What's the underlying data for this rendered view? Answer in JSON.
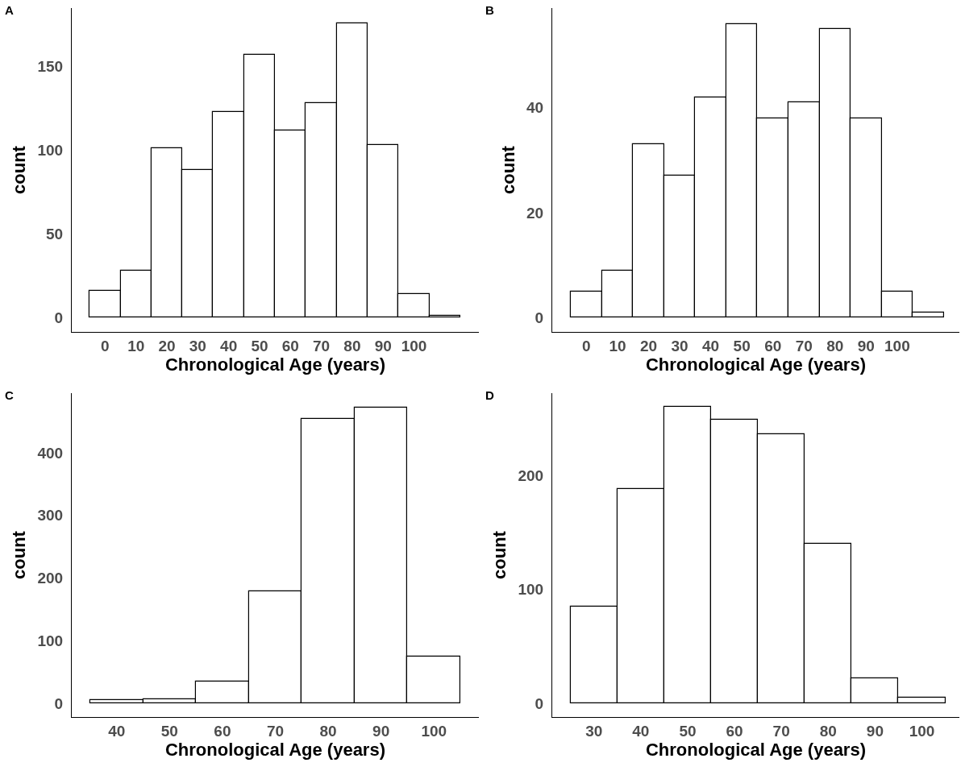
{
  "chart_data": [
    {
      "type": "histogram",
      "title": "A",
      "xlabel": "Chronological Age (years)",
      "ylabel": "count",
      "bins": [
        -5,
        5,
        15,
        25,
        35,
        45,
        55,
        65,
        75,
        85,
        95,
        105,
        115
      ],
      "values": [
        16,
        28,
        101,
        88,
        123,
        157,
        112,
        128,
        176,
        103,
        14,
        1
      ],
      "color": "#ffffff",
      "xlim": [
        -10.8,
        121
      ],
      "xticks": [
        0,
        10,
        20,
        30,
        40,
        50,
        60,
        70,
        80,
        90,
        100
      ],
      "ylim": [
        -8.6,
        185
      ],
      "yticks": [
        0,
        50,
        100,
        150
      ],
      "grid": false
    },
    {
      "type": "histogram",
      "title": "B",
      "xlabel": "Chronological Age (years)",
      "ylabel": "count",
      "bins": [
        -5,
        5,
        15,
        25,
        35,
        45,
        55,
        65,
        75,
        85,
        95,
        105,
        115
      ],
      "values": [
        5,
        9,
        33,
        27,
        42,
        56,
        38,
        41,
        55,
        38,
        5,
        1
      ],
      "color": "#ffffff",
      "xlim": [
        -11,
        120
      ],
      "xticks": [
        0,
        10,
        20,
        30,
        40,
        50,
        60,
        70,
        80,
        90,
        100
      ],
      "ylim": [
        -2.75,
        59
      ],
      "yticks": [
        0,
        20,
        40
      ],
      "grid": false
    },
    {
      "type": "histogram",
      "title": "C",
      "xlabel": "Chronological Age (years)",
      "ylabel": "count",
      "bins": [
        35,
        45,
        55,
        65,
        75,
        85,
        95,
        105
      ],
      "values": [
        5,
        6,
        34,
        178,
        454,
        472,
        75
      ],
      "color": "#ffffff",
      "xlim": [
        31.5,
        108.5
      ],
      "xticks": [
        40,
        50,
        60,
        70,
        80,
        90,
        100
      ],
      "ylim": [
        -22,
        495
      ],
      "yticks": [
        0,
        100,
        200,
        300,
        400
      ],
      "grid": false
    },
    {
      "type": "histogram",
      "title": "D",
      "xlabel": "Chronological Age (years)",
      "ylabel": "count",
      "bins": [
        25,
        35,
        45,
        55,
        65,
        75,
        85,
        95,
        105
      ],
      "values": [
        85,
        188,
        260,
        249,
        236,
        140,
        22,
        5
      ],
      "color": "#ffffff",
      "xlim": [
        21.1,
        108
      ],
      "xticks": [
        30,
        40,
        50,
        60,
        70,
        80,
        90,
        100
      ],
      "ylim": [
        -12,
        272
      ],
      "yticks": [
        0,
        100,
        200
      ],
      "grid": false
    }
  ]
}
